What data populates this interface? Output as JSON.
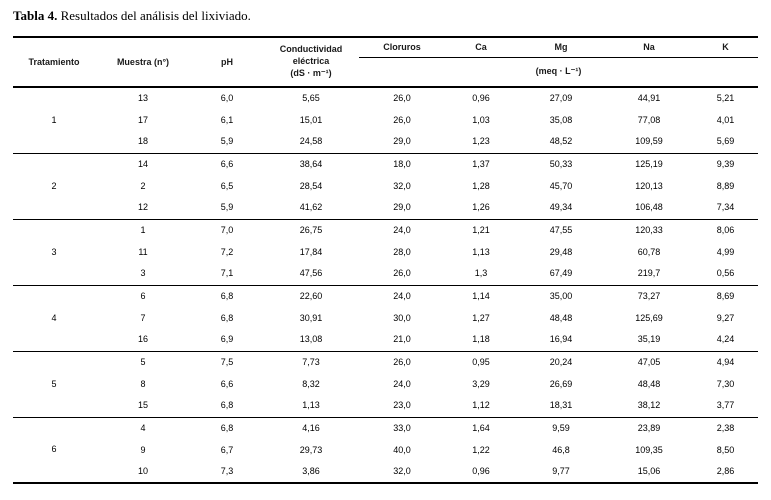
{
  "caption": {
    "label": "Tabla 4.",
    "text": " Resultados del análisis del lixiviado."
  },
  "table": {
    "headers": {
      "tratamiento": "Tratamiento",
      "muestra": "Muestra (n°)",
      "ph": "pH",
      "conductividad": "Conductividad\neléctrica\n(dS · m⁻¹)",
      "cloruros": "Cloruros",
      "ca": "Ca",
      "mg": "Mg",
      "na": "Na",
      "k": "K",
      "meq_unit": "(meq · L⁻¹)"
    },
    "groups": [
      {
        "tratamiento": "1",
        "rows": [
          [
            "13",
            "6,0",
            "5,65",
            "26,0",
            "0,96",
            "27,09",
            "44,91",
            "5,21"
          ],
          [
            "17",
            "6,1",
            "15,01",
            "26,0",
            "1,03",
            "35,08",
            "77,08",
            "4,01"
          ],
          [
            "18",
            "5,9",
            "24,58",
            "29,0",
            "1,23",
            "48,52",
            "109,59",
            "5,69"
          ]
        ]
      },
      {
        "tratamiento": "2",
        "rows": [
          [
            "14",
            "6,6",
            "38,64",
            "18,0",
            "1,37",
            "50,33",
            "125,19",
            "9,39"
          ],
          [
            "2",
            "6,5",
            "28,54",
            "32,0",
            "1,28",
            "45,70",
            "120,13",
            "8,89"
          ],
          [
            "12",
            "5,9",
            "41,62",
            "29,0",
            "1,26",
            "49,34",
            "106,48",
            "7,34"
          ]
        ]
      },
      {
        "tratamiento": "3",
        "rows": [
          [
            "1",
            "7,0",
            "26,75",
            "24,0",
            "1,21",
            "47,55",
            "120,33",
            "8,06"
          ],
          [
            "11",
            "7,2",
            "17,84",
            "28,0",
            "1,13",
            "29,48",
            "60,78",
            "4,99"
          ],
          [
            "3",
            "7,1",
            "47,56",
            "26,0",
            "1,3",
            "67,49",
            "219,7",
            "0,56"
          ]
        ]
      },
      {
        "tratamiento": "4",
        "rows": [
          [
            "6",
            "6,8",
            "22,60",
            "24,0",
            "1,14",
            "35,00",
            "73,27",
            "8,69"
          ],
          [
            "7",
            "6,8",
            "30,91",
            "30,0",
            "1,27",
            "48,48",
            "125,69",
            "9,27"
          ],
          [
            "16",
            "6,9",
            "13,08",
            "21,0",
            "1,18",
            "16,94",
            "35,19",
            "4,24"
          ]
        ]
      },
      {
        "tratamiento": "5",
        "rows": [
          [
            "5",
            "7,5",
            "7,73",
            "26,0",
            "0,95",
            "20,24",
            "47,05",
            "4,94"
          ],
          [
            "8",
            "6,6",
            "8,32",
            "24,0",
            "3,29",
            "26,69",
            "48,48",
            "7,30"
          ],
          [
            "15",
            "6,8",
            "1,13",
            "23,0",
            "1,12",
            "18,31",
            "38,12",
            "3,77"
          ]
        ]
      },
      {
        "tratamiento": "6",
        "rows": [
          [
            "4",
            "6,8",
            "4,16",
            "33,0",
            "1,64",
            "9,59",
            "23,89",
            "2,38"
          ],
          [
            "9",
            "6,7",
            "29,73",
            "40,0",
            "1,22",
            "46,8",
            "109,35",
            "8,50"
          ],
          [
            "10",
            "7,3",
            "3,86",
            "32,0",
            "0,96",
            "9,77",
            "15,06",
            "2,86"
          ]
        ]
      }
    ]
  }
}
